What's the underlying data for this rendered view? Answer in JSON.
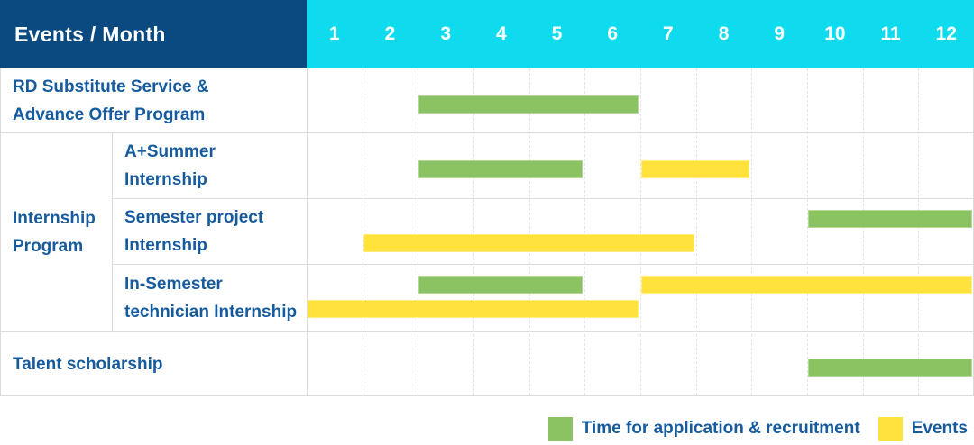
{
  "header": {
    "label": "Events / Month"
  },
  "row_labels": {
    "rd": {
      "lines": [
        "RD Substitute Service &",
        "Advance Offer Program"
      ]
    },
    "group": {
      "lines": [
        "Internship",
        "Program"
      ]
    },
    "a_summer": {
      "lines": [
        "A+Summer",
        "Internship"
      ]
    },
    "semester_project": {
      "lines": [
        "Semester project",
        "Internship"
      ]
    },
    "in_semester": {
      "lines": [
        "In-Semester",
        "technician Internship"
      ]
    },
    "talent": {
      "lines": [
        "Talent scholarship"
      ]
    }
  },
  "colors": {
    "header_bg": "#0a4a80",
    "month_header_bg": "#0edcee",
    "text_blue": "#165b9e",
    "bar_green": "#8bc363",
    "bar_yellow": "#ffe33c",
    "grid_line": "#dcdcdc"
  },
  "chart_data": {
    "type": "bar",
    "subtype": "gantt-timeline",
    "title": "Events / Month",
    "x_axis": {
      "label": "Month",
      "ticks": [
        "1",
        "2",
        "3",
        "4",
        "5",
        "6",
        "7",
        "8",
        "9",
        "10",
        "11",
        "12"
      ],
      "range": [
        1,
        12
      ]
    },
    "grid": true,
    "legend_position": "bottom-right",
    "series": [
      {
        "name": "Time for application & recruitment",
        "color": "#8bc363"
      },
      {
        "name": "Events",
        "color": "#ffe33c"
      }
    ],
    "rows": [
      {
        "name": "RD Substitute Service & Advance Offer Program",
        "group": null,
        "bars": [
          {
            "series": "Time for application & recruitment",
            "start_month": 3,
            "end_month": 6,
            "lane": "center"
          }
        ]
      },
      {
        "name": "A+Summer Internship",
        "group": "Internship Program",
        "bars": [
          {
            "series": "Time for application & recruitment",
            "start_month": 3,
            "end_month": 5,
            "lane": "center"
          },
          {
            "series": "Events",
            "start_month": 7,
            "end_month": 8,
            "lane": "center"
          }
        ]
      },
      {
        "name": "Semester project Internship",
        "group": "Internship Program",
        "bars": [
          {
            "series": "Time for application & recruitment",
            "start_month": 10,
            "end_month": 12,
            "lane": "upper"
          },
          {
            "series": "Events",
            "start_month": 2,
            "end_month": 7,
            "lane": "lower"
          }
        ]
      },
      {
        "name": "In-Semester technician Internship",
        "group": "Internship Program",
        "bars": [
          {
            "series": "Time for application & recruitment",
            "start_month": 3,
            "end_month": 5,
            "lane": "upper"
          },
          {
            "series": "Events",
            "start_month": 7,
            "end_month": 12,
            "lane": "upper"
          },
          {
            "series": "Events",
            "start_month": 1,
            "end_month": 6,
            "lane": "lower"
          }
        ]
      },
      {
        "name": "Talent scholarship",
        "group": null,
        "bars": [
          {
            "series": "Time for application & recruitment",
            "start_month": 10,
            "end_month": 12,
            "lane": "center"
          }
        ]
      }
    ]
  }
}
